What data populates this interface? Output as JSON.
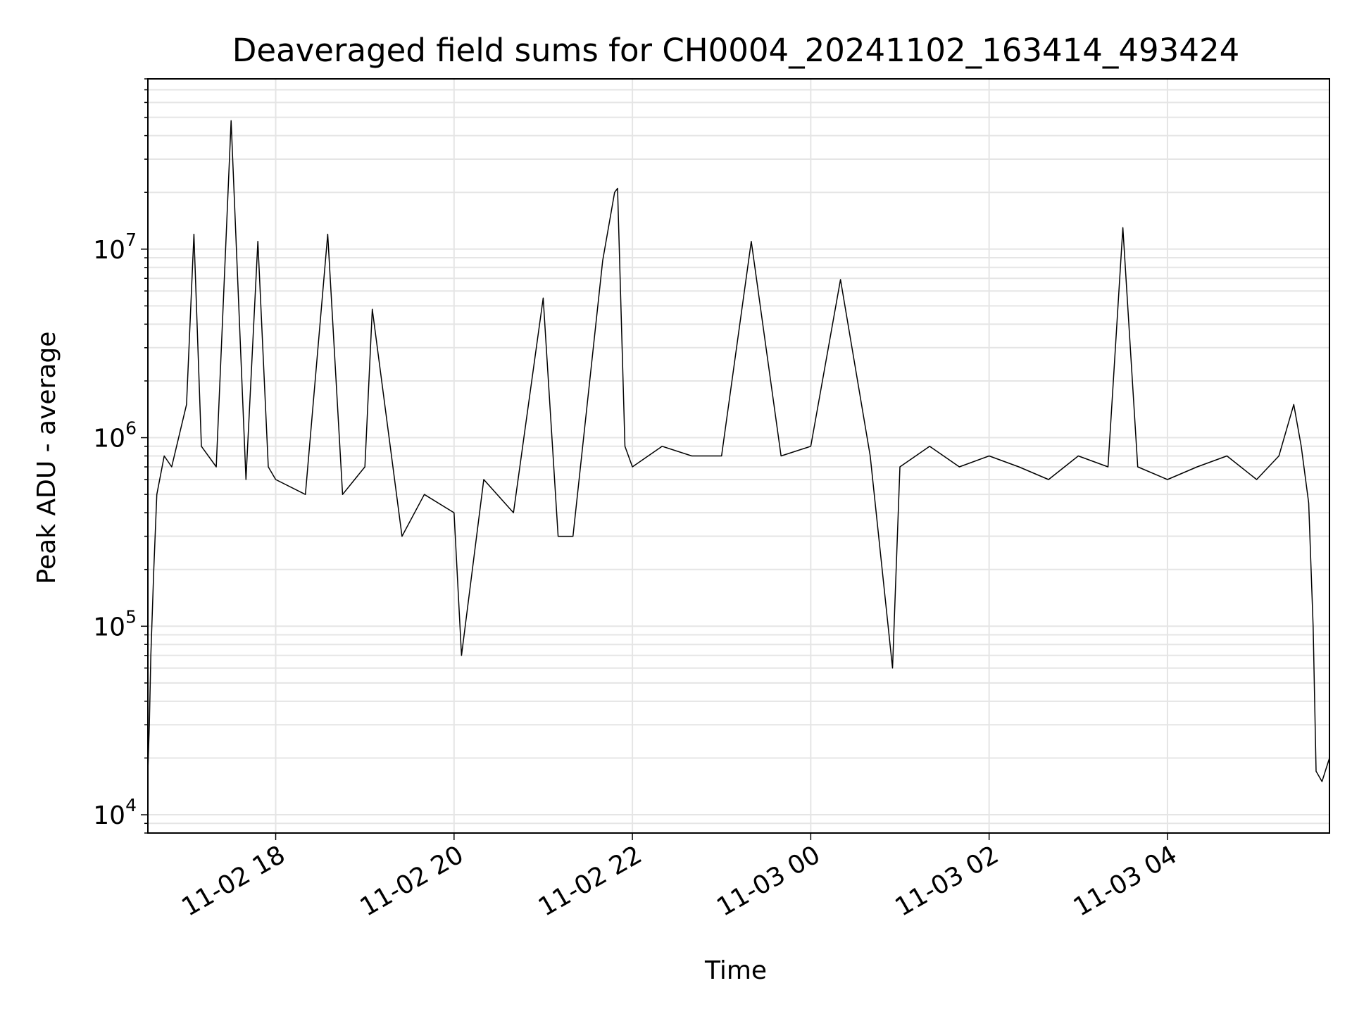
{
  "chart_data": {
    "type": "line",
    "title": "Deaveraged field sums for CH0004_20241102_163414_493424",
    "xlabel": "Time",
    "ylabel": "Peak ADU - average",
    "xlim": [
      "2024-11-02T16:34:00",
      "2024-11-03T05:49:00"
    ],
    "ylim": [
      8000,
      80000000
    ],
    "yscale": "log",
    "grid": true,
    "line_color": "#000000",
    "grid_color": "#e5e5e5",
    "x_ticks": [
      {
        "value": "2024-11-02T18:00:00",
        "label": "11-02 18"
      },
      {
        "value": "2024-11-02T20:00:00",
        "label": "11-02 20"
      },
      {
        "value": "2024-11-02T22:00:00",
        "label": "11-02 22"
      },
      {
        "value": "2024-11-03T00:00:00",
        "label": "11-03 00"
      },
      {
        "value": "2024-11-03T02:00:00",
        "label": "11-03 02"
      },
      {
        "value": "2024-11-03T04:00:00",
        "label": "11-03 04"
      }
    ],
    "y_ticks": [
      {
        "value": 10000,
        "base": "10",
        "exp": "4"
      },
      {
        "value": 100000,
        "base": "10",
        "exp": "5"
      },
      {
        "value": 1000000,
        "base": "10",
        "exp": "6"
      },
      {
        "value": 10000000,
        "base": "10",
        "exp": "7"
      }
    ],
    "series": [
      {
        "x": [
          "2024-11-02T16:34:00",
          "2024-11-02T16:35:00",
          "2024-11-02T16:36:00",
          "2024-11-02T16:38:00",
          "2024-11-02T16:40:00",
          "2024-11-02T16:45:00",
          "2024-11-02T16:50:00",
          "2024-11-02T17:00:00",
          "2024-11-02T17:05:00",
          "2024-11-02T17:10:00",
          "2024-11-02T17:20:00",
          "2024-11-02T17:30:00",
          "2024-11-02T17:40:00",
          "2024-11-02T17:48:00",
          "2024-11-02T17:55:00",
          "2024-11-02T18:00:00",
          "2024-11-02T18:20:00",
          "2024-11-02T18:35:00",
          "2024-11-02T18:45:00",
          "2024-11-02T19:00:00",
          "2024-11-02T19:05:00",
          "2024-11-02T19:25:00",
          "2024-11-02T19:40:00",
          "2024-11-02T20:00:00",
          "2024-11-02T20:05:00",
          "2024-11-02T20:20:00",
          "2024-11-02T20:40:00",
          "2024-11-02T21:00:00",
          "2024-11-02T21:10:00",
          "2024-11-02T21:20:00",
          "2024-11-02T21:40:00",
          "2024-11-02T21:48:00",
          "2024-11-02T21:50:00",
          "2024-11-02T21:55:00",
          "2024-11-02T22:00:00",
          "2024-11-02T22:20:00",
          "2024-11-02T22:40:00",
          "2024-11-02T23:00:00",
          "2024-11-02T23:20:00",
          "2024-11-02T23:40:00",
          "2024-11-03T00:00:00",
          "2024-11-03T00:20:00",
          "2024-11-03T00:40:00",
          "2024-11-03T00:55:00",
          "2024-11-03T01:00:00",
          "2024-11-03T01:20:00",
          "2024-11-03T01:40:00",
          "2024-11-03T02:00:00",
          "2024-11-03T02:20:00",
          "2024-11-03T02:40:00",
          "2024-11-03T03:00:00",
          "2024-11-03T03:20:00",
          "2024-11-03T03:30:00",
          "2024-11-03T03:40:00",
          "2024-11-03T04:00:00",
          "2024-11-03T04:20:00",
          "2024-11-03T04:40:00",
          "2024-11-03T05:00:00",
          "2024-11-03T05:15:00",
          "2024-11-03T05:25:00",
          "2024-11-03T05:30:00",
          "2024-11-03T05:35:00",
          "2024-11-03T05:38:00",
          "2024-11-03T05:40:00",
          "2024-11-03T05:44:00",
          "2024-11-03T05:49:00"
        ],
        "y": [
          17000,
          30000,
          70000,
          200000,
          500000,
          800000,
          700000,
          1500000,
          12000000,
          900000,
          700000,
          48000000,
          600000,
          11000000,
          700000,
          600000,
          500000,
          12000000,
          500000,
          700000,
          4800000,
          300000,
          500000,
          400000,
          70000,
          600000,
          400000,
          5500000,
          300000,
          300000,
          8700000,
          20000000,
          21000000,
          900000,
          700000,
          900000,
          800000,
          800000,
          11000000,
          800000,
          900000,
          6900000,
          800000,
          60000,
          700000,
          900000,
          700000,
          800000,
          700000,
          600000,
          800000,
          700000,
          13000000,
          700000,
          600000,
          700000,
          800000,
          600000,
          800000,
          1500000,
          900000,
          450000,
          100000,
          17000,
          15000,
          20000
        ]
      }
    ],
    "annotations": [
      {
        "x": "2024-11-02T17:32:00",
        "y": 48000000,
        "text": ""
      }
    ]
  }
}
